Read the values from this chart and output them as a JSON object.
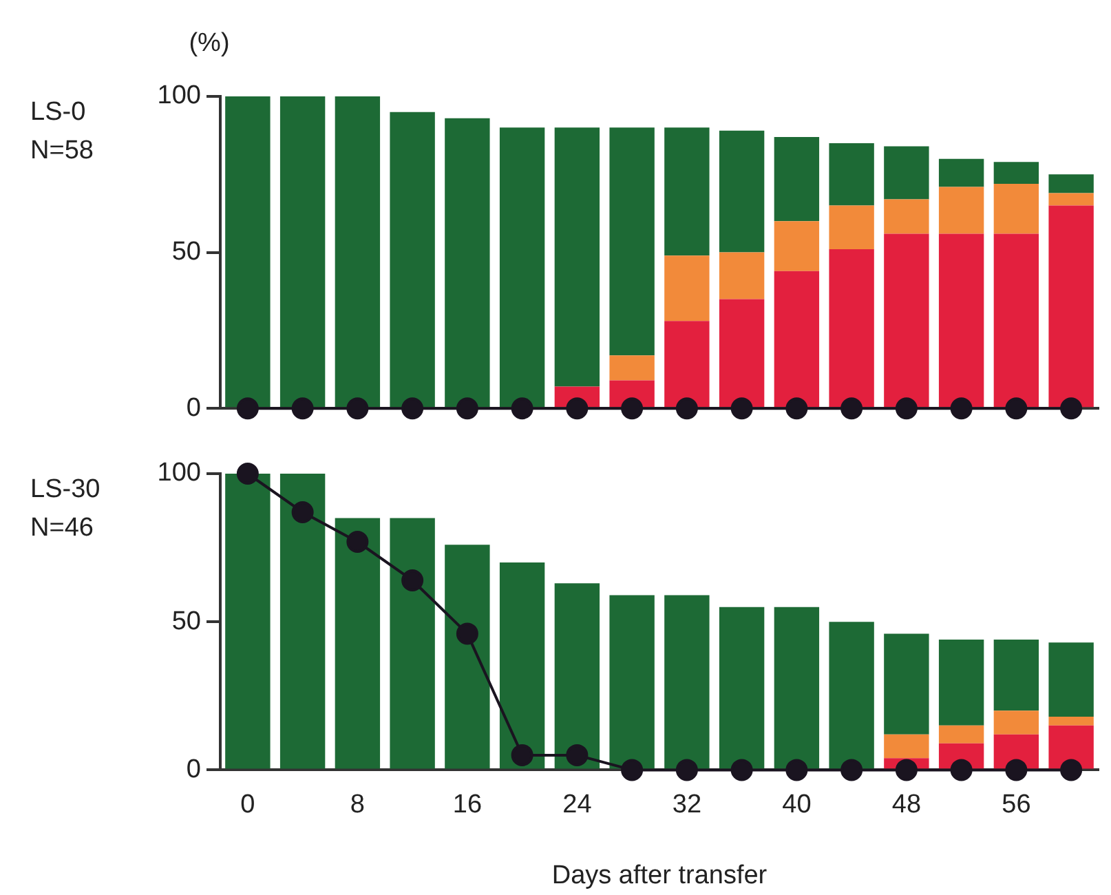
{
  "chart_data": [
    {
      "type": "bar",
      "ylabel": "(%)",
      "annotations": [
        "LS-0",
        "N=58"
      ],
      "stacked": true,
      "grid": false,
      "legend": false,
      "tick_labels": "y",
      "marker": "circle",
      "categories": [
        "0",
        null,
        "8",
        null,
        "16",
        null,
        "24",
        null,
        "32",
        null,
        "40",
        null,
        "48",
        null,
        "56",
        null
      ],
      "ylim": [
        0,
        100
      ],
      "yticks": [
        0,
        50,
        100
      ],
      "series": [
        {
          "color": "#e3203e",
          "values": [
            0,
            0,
            0,
            0,
            0,
            0,
            7,
            9,
            28,
            35,
            44,
            51,
            56,
            56,
            56,
            65
          ]
        },
        {
          "color": "#f28a3a",
          "values": [
            0,
            0,
            0,
            0,
            0,
            0,
            0,
            8,
            21,
            15,
            16,
            14,
            11,
            15,
            16,
            4
          ]
        },
        {
          "color": "#1d6a35",
          "values": [
            100,
            100,
            100,
            95,
            93,
            90,
            83,
            73,
            41,
            39,
            27,
            20,
            17,
            9,
            7,
            6
          ]
        },
        {
          "type": "line",
          "color": "#1a1420",
          "values": [
            0,
            0,
            0,
            0,
            0,
            0,
            0,
            0,
            0,
            0,
            0,
            0,
            0,
            0,
            0,
            0
          ]
        }
      ]
    },
    {
      "type": "bar",
      "xlabel": "Days after transfer",
      "annotations": [
        "LS-30",
        "N=46"
      ],
      "stacked": true,
      "grid": false,
      "legend": false,
      "marker": "circle",
      "categories": [
        "0",
        null,
        "8",
        null,
        "16",
        null,
        "24",
        null,
        "32",
        null,
        "40",
        null,
        "48",
        null,
        "56",
        null
      ],
      "ylim": [
        0,
        100
      ],
      "yticks": [
        0,
        50,
        100
      ],
      "series": [
        {
          "color": "#e3203e",
          "values": [
            0,
            0,
            0,
            0,
            0,
            0,
            0,
            0,
            0,
            0,
            0,
            0,
            4,
            9,
            12,
            15
          ]
        },
        {
          "color": "#f28a3a",
          "values": [
            0,
            0,
            0,
            0,
            0,
            0,
            0,
            0,
            0,
            0,
            0,
            0,
            8,
            6,
            8,
            3
          ]
        },
        {
          "color": "#1d6a35",
          "values": [
            100,
            100,
            85,
            85,
            76,
            70,
            63,
            59,
            59,
            55,
            55,
            50,
            34,
            29,
            24,
            25
          ]
        },
        {
          "type": "line",
          "color": "#1a1420",
          "values": [
            100,
            87,
            77,
            64,
            46,
            5,
            5,
            0,
            0,
            0,
            0,
            0,
            0,
            0,
            0,
            0
          ]
        }
      ]
    }
  ]
}
